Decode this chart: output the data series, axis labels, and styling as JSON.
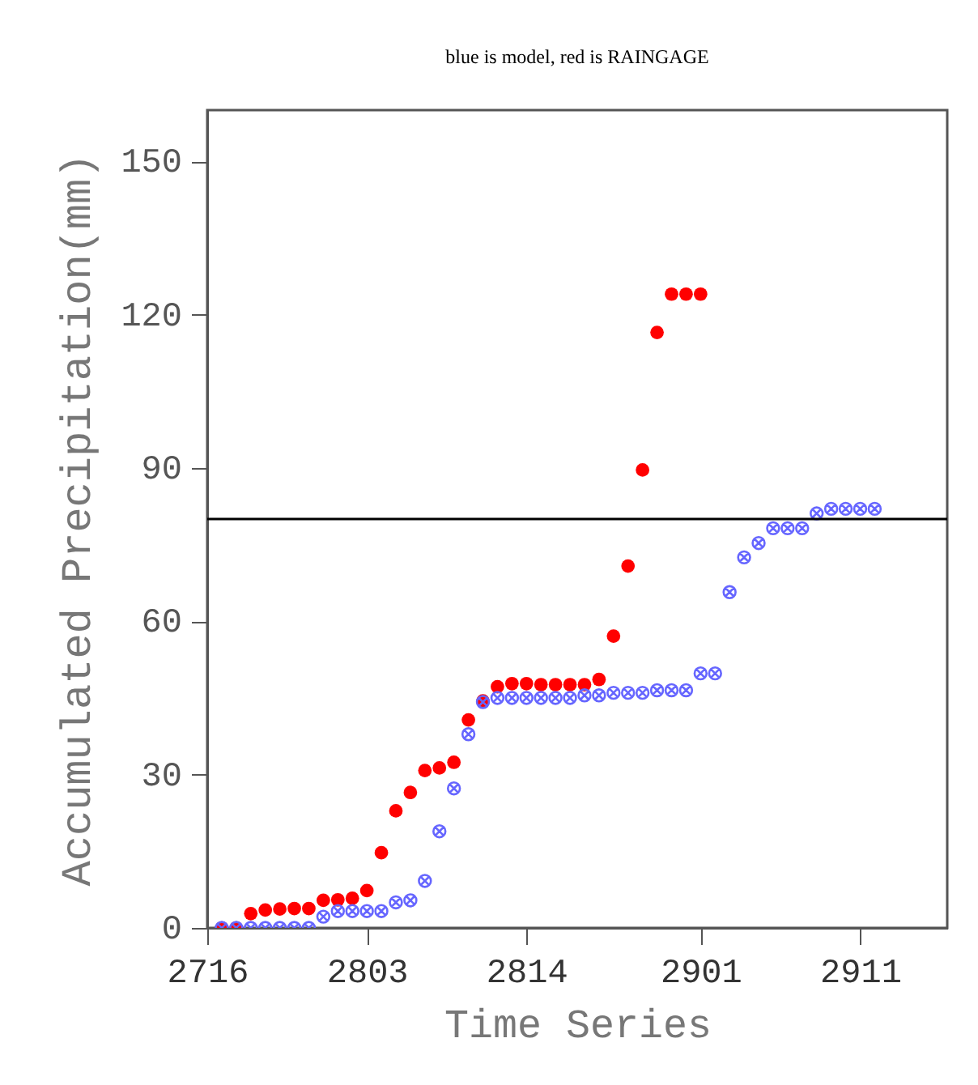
{
  "chart_data": {
    "type": "scatter",
    "title": "blue is model, red is RAINGAGE",
    "xlabel": "Time Series",
    "ylabel": "Accumulated Precipitation(mm)",
    "categories": [
      "2716",
      null,
      null,
      null,
      null,
      null,
      null,
      null,
      null,
      null,
      null,
      "2803",
      null,
      null,
      null,
      null,
      null,
      null,
      null,
      null,
      null,
      null,
      "2814",
      null,
      null,
      null,
      null,
      null,
      null,
      null,
      null,
      null,
      null,
      null,
      "2901",
      null,
      null,
      null,
      null,
      null,
      null,
      null,
      null,
      null,
      null,
      "2911",
      null,
      null,
      null,
      null,
      null,
      null
    ],
    "ylim": [
      0,
      160
    ],
    "yticks": [
      0,
      30,
      60,
      90,
      120,
      150
    ],
    "grid": false,
    "ref_lines": [
      {
        "axis": "y",
        "value": 80,
        "color": "#000000"
      }
    ],
    "series": [
      {
        "color": "#ff0000",
        "marker": "circle",
        "values": [
          null,
          0,
          0,
          2.8,
          3.5,
          3.7,
          3.8,
          3.8,
          5.4,
          5.5,
          5.8,
          7.3,
          14.7,
          22.9,
          26.5,
          30.8,
          31.3,
          32.4,
          40.7,
          44.4,
          47.2,
          47.8,
          47.8,
          47.6,
          47.6,
          47.6,
          47.6,
          48.6,
          57.1,
          70.8,
          89.6,
          116.5,
          124,
          124,
          124,
          null,
          null,
          null,
          null,
          null,
          null,
          null,
          null,
          null,
          null,
          null,
          null,
          null,
          null,
          null,
          null,
          null
        ]
      },
      {
        "color": "#6666ff",
        "marker": "cross",
        "values": [
          null,
          0,
          0,
          0,
          0,
          0,
          0,
          0,
          2.2,
          3.3,
          3.3,
          3.3,
          3.3,
          5.0,
          5.4,
          9.2,
          18.9,
          27.3,
          37.9,
          44.2,
          45,
          45,
          45,
          45,
          45,
          45,
          45.5,
          45.5,
          46,
          46,
          46,
          46.5,
          46.5,
          46.5,
          49.8,
          49.8,
          65.7,
          72.5,
          75.3,
          78.2,
          78.2,
          78.2,
          81.1,
          82,
          82,
          82,
          82,
          null,
          null,
          null,
          null,
          null
        ]
      }
    ]
  }
}
